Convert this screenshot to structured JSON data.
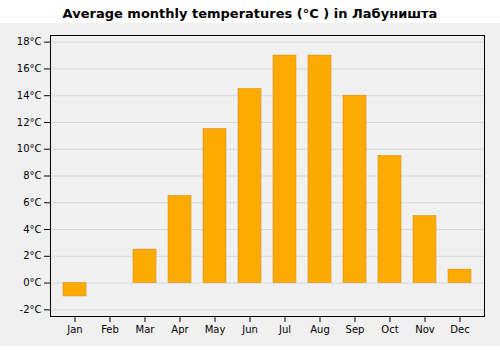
{
  "chart_data": {
    "type": "bar",
    "title": "Average monthly temperatures (°C ) in Лабуништа",
    "categories": [
      "Jan",
      "Feb",
      "Mar",
      "Apr",
      "May",
      "Jun",
      "Jul",
      "Aug",
      "Sep",
      "Oct",
      "Nov",
      "Dec"
    ],
    "values": [
      -1.0,
      0.0,
      2.5,
      6.5,
      11.5,
      14.5,
      17.0,
      17.0,
      14.0,
      9.5,
      5.0,
      1.0
    ],
    "color": "#FFAA00",
    "ylim": [
      -2.5,
      18.5
    ],
    "yticks": [
      {
        "value": -2,
        "label": "-2°C"
      },
      {
        "value": 0,
        "label": "0°C"
      },
      {
        "value": 2,
        "label": "2°C"
      },
      {
        "value": 4,
        "label": "4°C"
      },
      {
        "value": 6,
        "label": "6°C"
      },
      {
        "value": 8,
        "label": "8°C"
      },
      {
        "value": 10,
        "label": "10°C"
      },
      {
        "value": 12,
        "label": "12°C"
      },
      {
        "value": 14,
        "label": "14°C"
      },
      {
        "value": 16,
        "label": "16°C"
      },
      {
        "value": 18,
        "label": "18°C"
      }
    ],
    "grid": true
  }
}
